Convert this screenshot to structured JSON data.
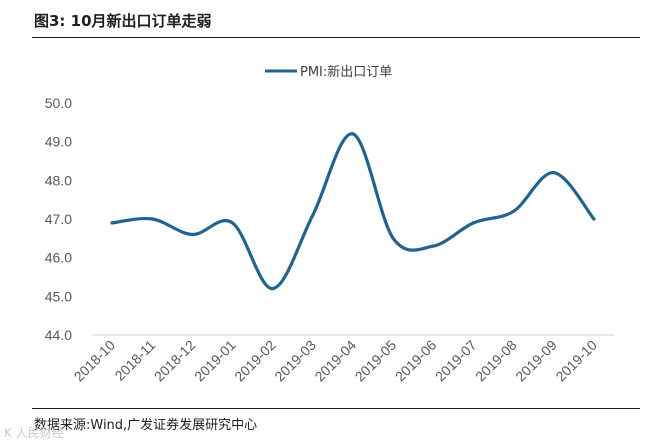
{
  "figure": {
    "title": "图3:  10月新出口订单走弱",
    "source": "数据来源:Wind,广发证券发展研究中心",
    "watermark": "K 人民财经"
  },
  "colors": {
    "series": "#1f6491",
    "axis": "#d9d9d9",
    "text": "#595959"
  },
  "chart_data": {
    "type": "line",
    "title": "10月新出口订单走弱",
    "xlabel": "",
    "ylabel": "",
    "ylim": [
      44.0,
      50.0
    ],
    "yticks": [
      "44.0",
      "45.0",
      "46.0",
      "47.0",
      "48.0",
      "49.0",
      "50.0"
    ],
    "grid": false,
    "legend_position": "top-center",
    "categories": [
      "2018-10",
      "2018-11",
      "2018-12",
      "2019-01",
      "2019-02",
      "2019-03",
      "2019-04",
      "2019-05",
      "2019-06",
      "2019-07",
      "2019-08",
      "2019-09",
      "2019-10"
    ],
    "series": [
      {
        "name": "PMI:新出口订单",
        "values": [
          46.9,
          47.0,
          46.6,
          46.9,
          45.2,
          47.1,
          49.2,
          46.5,
          46.3,
          46.9,
          47.2,
          48.2,
          47.0
        ]
      }
    ]
  }
}
